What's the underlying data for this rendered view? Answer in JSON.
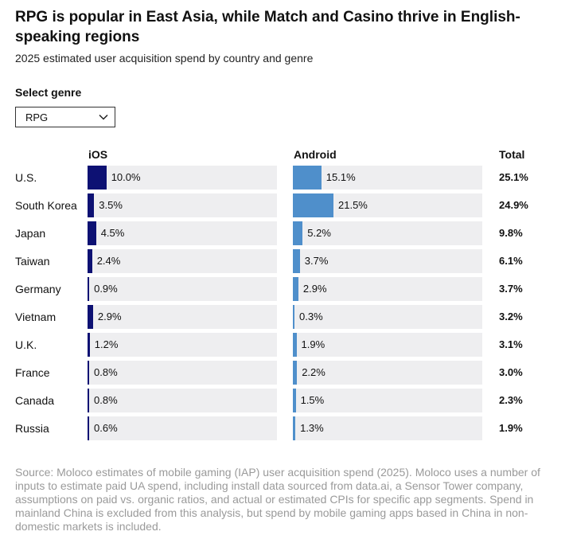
{
  "header": {
    "title": "RPG is popular in East Asia, while Match and Casino thrive in English-speaking regions",
    "subtitle": "2025 estimated user acquisition spend by country and genre"
  },
  "genre_select": {
    "label": "Select genre",
    "selected": "RPG",
    "icon": "chevron-down-icon"
  },
  "columns": {
    "ios": "iOS",
    "android": "Android",
    "total": "Total"
  },
  "colors": {
    "ios": "#0d1173",
    "android": "#4f8fcb",
    "track": "#eeeef0"
  },
  "chart_data": {
    "type": "bar",
    "orientation": "horizontal",
    "unit": "%",
    "categories": [
      "U.S.",
      "South Korea",
      "Japan",
      "Taiwan",
      "Germany",
      "Vietnam",
      "U.K.",
      "France",
      "Canada",
      "Russia"
    ],
    "series": [
      {
        "name": "iOS",
        "values": [
          10.0,
          3.5,
          4.5,
          2.4,
          0.9,
          2.9,
          1.2,
          0.8,
          0.8,
          0.6
        ],
        "labels": [
          "10.0%",
          "3.5%",
          "4.5%",
          "2.4%",
          "0.9%",
          "2.9%",
          "1.2%",
          "0.8%",
          "0.8%",
          "0.6%"
        ]
      },
      {
        "name": "Android",
        "values": [
          15.1,
          21.5,
          5.2,
          3.7,
          2.9,
          0.3,
          1.9,
          2.2,
          1.5,
          1.3
        ],
        "labels": [
          "15.1%",
          "21.5%",
          "5.2%",
          "3.7%",
          "2.9%",
          "0.3%",
          "1.9%",
          "2.2%",
          "1.5%",
          "1.3%"
        ]
      },
      {
        "name": "Total",
        "values": [
          25.1,
          24.9,
          9.8,
          6.1,
          3.7,
          3.2,
          3.1,
          3.0,
          2.3,
          1.9
        ],
        "labels": [
          "25.1%",
          "24.9%",
          "9.8%",
          "6.1%",
          "3.7%",
          "3.2%",
          "3.1%",
          "3.0%",
          "2.3%",
          "1.9%"
        ]
      }
    ],
    "xlim": [
      0,
      100
    ]
  },
  "source": "Source: Moloco estimates of mobile gaming (IAP) user acquisition spend (2025). Moloco uses a number of inputs to estimate paid UA spend, including install data sourced from data.ai, a Sensor Tower company, assumptions on paid vs. organic ratios, and actual or estimated CPIs for specific app segments. Spend in mainland China is excluded from this analysis, but spend by mobile gaming apps based in China in non-domestic markets is included."
}
